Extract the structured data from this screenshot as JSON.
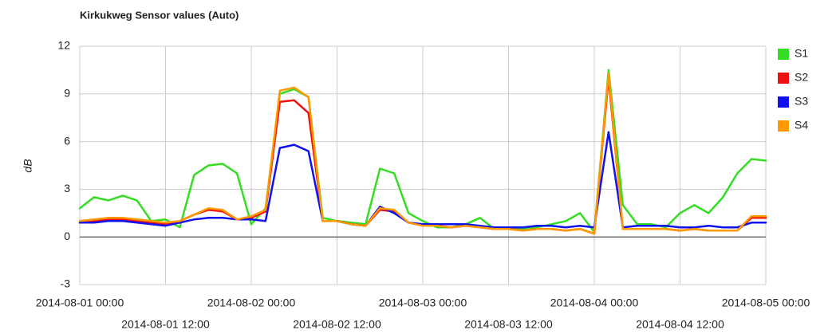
{
  "chart_data": {
    "type": "line",
    "title": "Kirkukweg Sensor values (Auto)",
    "y_label": "dB",
    "x": [
      "2014-08-01 00:00",
      "2014-08-01 02:00",
      "2014-08-01 04:00",
      "2014-08-01 06:00",
      "2014-08-01 08:00",
      "2014-08-01 10:00",
      "2014-08-01 12:00",
      "2014-08-01 14:00",
      "2014-08-01 16:00",
      "2014-08-01 18:00",
      "2014-08-01 20:00",
      "2014-08-01 22:00",
      "2014-08-02 00:00",
      "2014-08-02 02:00",
      "2014-08-02 04:00",
      "2014-08-02 06:00",
      "2014-08-02 08:00",
      "2014-08-02 10:00",
      "2014-08-02 12:00",
      "2014-08-02 14:00",
      "2014-08-02 16:00",
      "2014-08-02 18:00",
      "2014-08-02 20:00",
      "2014-08-02 22:00",
      "2014-08-03 00:00",
      "2014-08-03 02:00",
      "2014-08-03 04:00",
      "2014-08-03 06:00",
      "2014-08-03 08:00",
      "2014-08-03 10:00",
      "2014-08-03 12:00",
      "2014-08-03 14:00",
      "2014-08-03 16:00",
      "2014-08-03 18:00",
      "2014-08-03 20:00",
      "2014-08-03 22:00",
      "2014-08-04 00:00",
      "2014-08-04 02:00",
      "2014-08-04 04:00",
      "2014-08-04 06:00",
      "2014-08-04 08:00",
      "2014-08-04 10:00",
      "2014-08-04 12:00",
      "2014-08-04 14:00",
      "2014-08-04 16:00",
      "2014-08-04 18:00",
      "2014-08-04 20:00",
      "2014-08-04 22:00",
      "2014-08-05 00:00"
    ],
    "series": [
      {
        "name": "S1",
        "color": "#33dd22",
        "values": [
          1.8,
          2.5,
          2.3,
          2.6,
          2.3,
          1.0,
          1.1,
          0.6,
          3.9,
          4.5,
          4.6,
          4.0,
          0.8,
          1.8,
          9.0,
          9.3,
          8.8,
          1.2,
          1.0,
          0.9,
          0.8,
          4.3,
          4.0,
          1.5,
          1.0,
          0.6,
          0.6,
          0.8,
          1.2,
          0.5,
          0.6,
          0.5,
          0.6,
          0.8,
          1.0,
          1.5,
          0.3,
          10.5,
          2.0,
          0.8,
          0.8,
          0.6,
          1.5,
          2.0,
          1.5,
          2.5,
          4.0,
          4.9,
          4.8
        ]
      },
      {
        "name": "S2",
        "color": "#ee1111",
        "values": [
          0.9,
          1.0,
          1.1,
          1.1,
          1.0,
          0.9,
          0.8,
          1.0,
          1.4,
          1.7,
          1.6,
          1.1,
          1.2,
          1.6,
          8.5,
          8.6,
          7.8,
          1.0,
          1.0,
          0.8,
          0.7,
          1.7,
          1.6,
          0.9,
          0.7,
          0.7,
          0.6,
          0.7,
          0.6,
          0.5,
          0.5,
          0.4,
          0.5,
          0.5,
          0.4,
          0.5,
          0.2,
          10.0,
          0.5,
          0.5,
          0.5,
          0.5,
          0.4,
          0.5,
          0.4,
          0.4,
          0.4,
          1.2,
          1.2
        ]
      },
      {
        "name": "S3",
        "color": "#1111ee",
        "values": [
          0.9,
          0.9,
          1.0,
          1.0,
          0.9,
          0.8,
          0.7,
          0.9,
          1.1,
          1.2,
          1.2,
          1.1,
          1.1,
          1.0,
          5.6,
          5.8,
          5.4,
          1.0,
          1.0,
          0.8,
          0.7,
          1.9,
          1.5,
          0.9,
          0.8,
          0.8,
          0.8,
          0.8,
          0.7,
          0.6,
          0.6,
          0.6,
          0.7,
          0.7,
          0.6,
          0.7,
          0.6,
          6.6,
          0.6,
          0.7,
          0.7,
          0.7,
          0.6,
          0.6,
          0.7,
          0.6,
          0.6,
          0.9,
          0.9
        ]
      },
      {
        "name": "S4",
        "color": "#ff9900",
        "values": [
          1.0,
          1.1,
          1.2,
          1.2,
          1.1,
          1.0,
          0.9,
          1.0,
          1.4,
          1.8,
          1.7,
          1.1,
          1.3,
          1.7,
          9.2,
          9.4,
          8.8,
          1.0,
          1.0,
          0.8,
          0.7,
          1.8,
          1.7,
          0.9,
          0.7,
          0.7,
          0.6,
          0.7,
          0.6,
          0.5,
          0.5,
          0.4,
          0.5,
          0.5,
          0.4,
          0.5,
          0.2,
          10.3,
          0.5,
          0.5,
          0.5,
          0.5,
          0.4,
          0.5,
          0.4,
          0.4,
          0.4,
          1.3,
          1.3
        ]
      }
    ],
    "xlim": [
      "2014-08-01 00:00",
      "2014-08-05 00:00"
    ],
    "xticks": [
      "2014-08-01 00:00",
      "2014-08-01 12:00",
      "2014-08-02 00:00",
      "2014-08-02 12:00",
      "2014-08-03 00:00",
      "2014-08-03 12:00",
      "2014-08-04 00:00",
      "2014-08-04 12:00",
      "2014-08-05 00:00"
    ],
    "ylim": [
      -3,
      12
    ],
    "yticks": [
      -3,
      0,
      3,
      6,
      9,
      12
    ],
    "grid": true,
    "legend": "right"
  }
}
